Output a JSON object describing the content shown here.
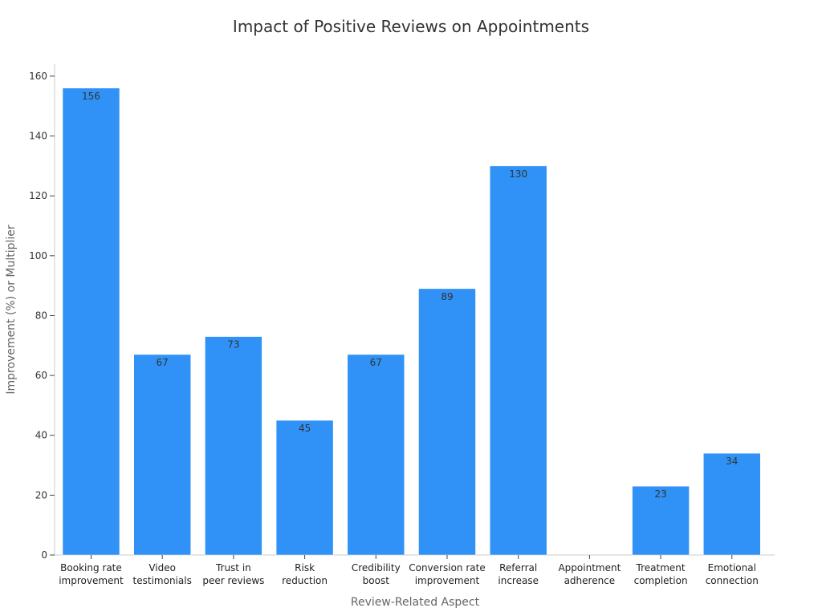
{
  "chart_data": {
    "type": "bar",
    "title": "Impact of Positive Reviews on Appointments",
    "xlabel": "Review-Related Aspect",
    "ylabel": "Improvement (%) or Multiplier",
    "categories": [
      [
        "Booking rate",
        "improvement"
      ],
      [
        "Video",
        "testimonials"
      ],
      [
        "Trust in",
        "peer reviews"
      ],
      [
        "Risk",
        "reduction"
      ],
      [
        "Credibility",
        "boost"
      ],
      [
        "Conversion rate",
        "improvement"
      ],
      [
        "Referral",
        "increase"
      ],
      [
        "Appointment",
        "adherence"
      ],
      [
        "Treatment",
        "completion"
      ],
      [
        "Emotional",
        "connection"
      ]
    ],
    "values": [
      156,
      67,
      73,
      45,
      67,
      89,
      130,
      0,
      23,
      34
    ],
    "data_labels": [
      "156",
      "67",
      "73",
      "45",
      "67",
      "89",
      "130",
      "",
      "23",
      "34"
    ],
    "ylim": [
      0,
      164
    ],
    "yticks": [
      0,
      20,
      40,
      60,
      80,
      100,
      120,
      140,
      160
    ],
    "grid": false,
    "bar_color": "#3092f6"
  }
}
